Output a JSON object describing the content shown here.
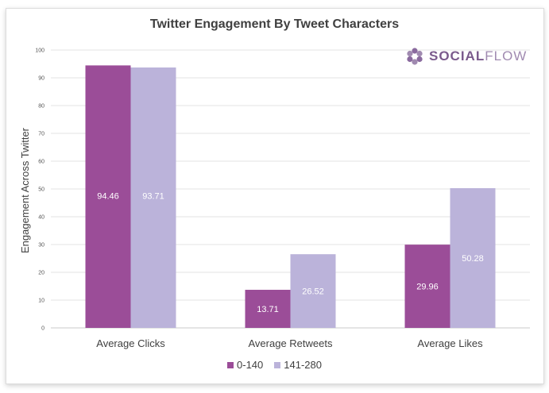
{
  "chart_data": {
    "type": "bar",
    "title": "Twitter Engagement By Tweet Characters",
    "xlabel": "",
    "ylabel": "Engagement Across Twitter",
    "ylim": [
      0,
      100
    ],
    "yticks": [
      0,
      10,
      20,
      30,
      40,
      50,
      60,
      70,
      80,
      90,
      100
    ],
    "categories": [
      "Average Clicks",
      "Average Retweets",
      "Average Likes"
    ],
    "series": [
      {
        "name": "0-140",
        "values": [
          94.46,
          13.71,
          29.96
        ],
        "labels": [
          "94.46",
          "13.71",
          "29.96"
        ],
        "color": "#9b4d98"
      },
      {
        "name": "141-280",
        "values": [
          93.71,
          26.52,
          50.28
        ],
        "labels": [
          "93.71",
          "26.52",
          "50.28"
        ],
        "color": "#bbb3da"
      }
    ],
    "grid": true,
    "legend_position": "bottom"
  },
  "brand": {
    "logo_icon": "socialflow-flower-icon",
    "text_bold": "SOCIAL",
    "text_light": "FLOW",
    "color": "#7a5a8c"
  }
}
